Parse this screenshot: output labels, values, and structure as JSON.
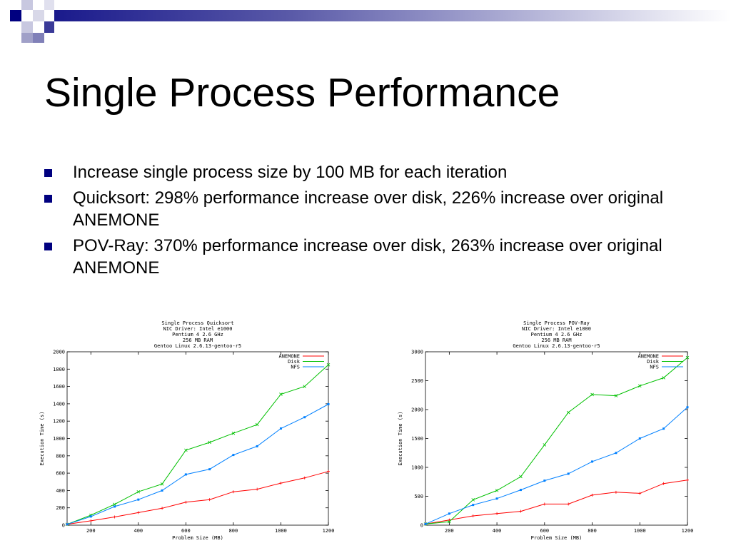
{
  "slide": {
    "title": "Single Process Performance",
    "bullets": [
      "Increase single process size by 100 MB for each iteration",
      "Quicksort: 298% performance increase over disk, 226% increase over original ANEMONE",
      "POV-Ray: 370% performance increase over disk, 263% increase over original ANEMONE"
    ]
  },
  "chart_data": [
    {
      "type": "line",
      "title": "Single Process Quicksort",
      "subtitle": [
        "NIC Driver: Intel e1000",
        "Pentium 4 2.6 GHz",
        "256 MB RAM",
        "Gentoo Linux 2.6.13-gentoo-r5"
      ],
      "xlabel": "Problem Size (MB)",
      "ylabel": "Execution Time (s)",
      "xlim": [
        100,
        1200
      ],
      "ylim": [
        0,
        2000
      ],
      "xticks": [
        200,
        400,
        600,
        800,
        1000,
        1200
      ],
      "yticks": [
        0,
        200,
        400,
        600,
        800,
        1000,
        1200,
        1400,
        1600,
        1800,
        2000
      ],
      "legend_position": "top-right",
      "x": [
        100,
        200,
        300,
        400,
        500,
        600,
        700,
        800,
        900,
        1000,
        1100,
        1200
      ],
      "series": [
        {
          "name": "ANEMONE",
          "color": "#ff0000",
          "values": [
            10,
            50,
            95,
            145,
            195,
            265,
            295,
            385,
            415,
            485,
            545,
            620
          ]
        },
        {
          "name": "Disk",
          "color": "#00c000",
          "values": [
            10,
            115,
            240,
            385,
            475,
            865,
            955,
            1060,
            1160,
            1510,
            1600,
            1850
          ]
        },
        {
          "name": "NFS",
          "color": "#0080ff",
          "values": [
            10,
            100,
            215,
            295,
            400,
            585,
            645,
            810,
            910,
            1115,
            1245,
            1395
          ]
        }
      ]
    },
    {
      "type": "line",
      "title": "Single Process POV-Ray",
      "subtitle": [
        "NIC Driver: Intel e1000",
        "Pentium 4 2.6 GHz",
        "256 MB RAM",
        "Gentoo Linux 2.6.13-gentoo-r5"
      ],
      "xlabel": "Problem Size (MB)",
      "ylabel": "Execution Time (s)",
      "xlim": [
        100,
        1200
      ],
      "ylim": [
        0,
        3000
      ],
      "xticks": [
        200,
        400,
        600,
        800,
        1000,
        1200
      ],
      "yticks": [
        0,
        500,
        1000,
        1500,
        2000,
        2500,
        3000
      ],
      "legend_position": "top-right",
      "x": [
        100,
        200,
        300,
        400,
        500,
        600,
        700,
        800,
        900,
        1000,
        1100,
        1200
      ],
      "series": [
        {
          "name": "ANEMONE",
          "color": "#ff0000",
          "values": [
            20,
            90,
            160,
            200,
            240,
            365,
            365,
            520,
            570,
            550,
            720,
            780
          ]
        },
        {
          "name": "Disk",
          "color": "#00c000",
          "values": [
            20,
            60,
            440,
            600,
            840,
            1390,
            1950,
            2260,
            2240,
            2410,
            2550,
            2900
          ]
        },
        {
          "name": "NFS",
          "color": "#0080ff",
          "values": [
            20,
            200,
            350,
            460,
            610,
            770,
            890,
            1100,
            1250,
            1500,
            1670,
            2040
          ]
        }
      ]
    }
  ]
}
